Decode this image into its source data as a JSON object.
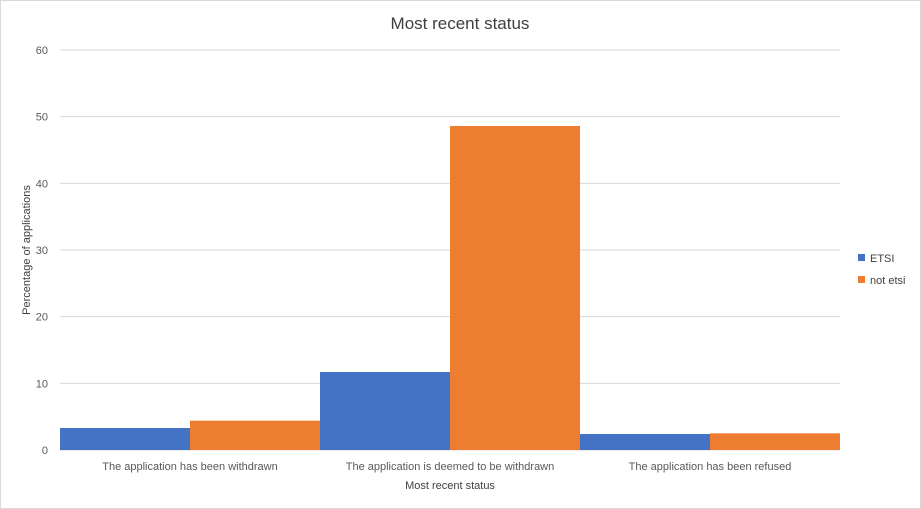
{
  "chart_data": {
    "type": "bar",
    "title": "Most recent status",
    "xlabel": "Most recent status",
    "ylabel": "Percentage of applications",
    "categories": [
      "The application has been withdrawn",
      "The application is deemed to be withdrawn",
      "The application has been refused"
    ],
    "series": [
      {
        "name": "ETSI",
        "color": "#4472C4",
        "values": [
          3.3,
          11.7,
          2.4
        ]
      },
      {
        "name": "not etsi",
        "color": "#ED7D31",
        "values": [
          4.4,
          48.6,
          2.5
        ]
      }
    ],
    "ylim": [
      0,
      60
    ],
    "yticks": [
      0,
      10,
      20,
      30,
      40,
      50,
      60
    ],
    "grid": true,
    "legend_position": "right"
  }
}
